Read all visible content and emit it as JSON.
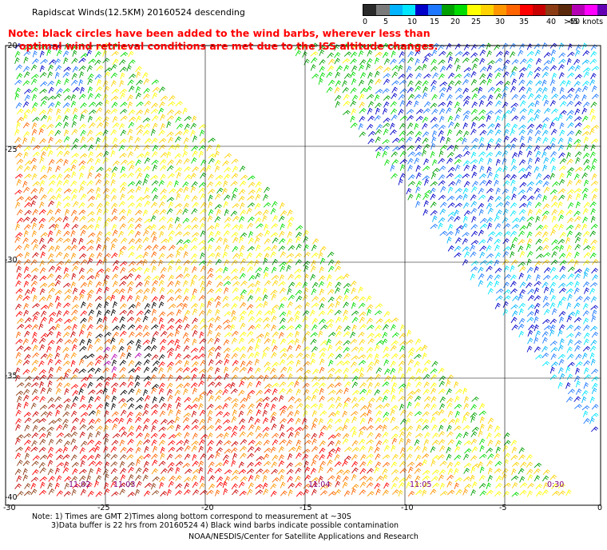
{
  "title": "Rapidscat Winds(12.5KM) 20160524 descending",
  "note": {
    "line1": "Note: black circles have been added to the wind barbs, wherever less than",
    "line2": "optimal wind retrieval conditions are met due to the ISS altitude changes."
  },
  "legend": {
    "colors": [
      "#2a2a2a",
      "#7a7a7a",
      "#00b4ff",
      "#00e6ff",
      "#0000c8",
      "#1e78ff",
      "#00a000",
      "#00dc00",
      "#ffff00",
      "#ffd200",
      "#ff9600",
      "#ff6400",
      "#ff0000",
      "#c80000",
      "#8c3c14",
      "#5a280a",
      "#b400b4",
      "#ff00ff",
      "#6400b4",
      "#32005a"
    ],
    "labels": [
      "0",
      "5",
      "10",
      "15",
      "20",
      "25",
      "30",
      "35",
      "40",
      "45",
      ">50 knots"
    ]
  },
  "axes": {
    "y_ticks": [
      "-20",
      "-25",
      "-30",
      "-35",
      "-40"
    ],
    "x_ticks": [
      "-30",
      "-25",
      "-20",
      "-15",
      "-10",
      "-5",
      "0"
    ]
  },
  "times": [
    "11:02",
    "11:03",
    "11:04",
    "11:05",
    "0:30"
  ],
  "footnote": {
    "line1": "Note: 1) Times are GMT 2)Times along bottom correspond to measurement at ~30S",
    "line2": "3)Data buffer is 22 hrs from 20160524 4) Black wind barbs indicate possible contamination"
  },
  "credit": "NOAA/NESDIS/Center for Satellite Applications and Research",
  "colors": {
    "grid": "#000000",
    "note": "#ff0000",
    "time_label": "#800080"
  }
}
